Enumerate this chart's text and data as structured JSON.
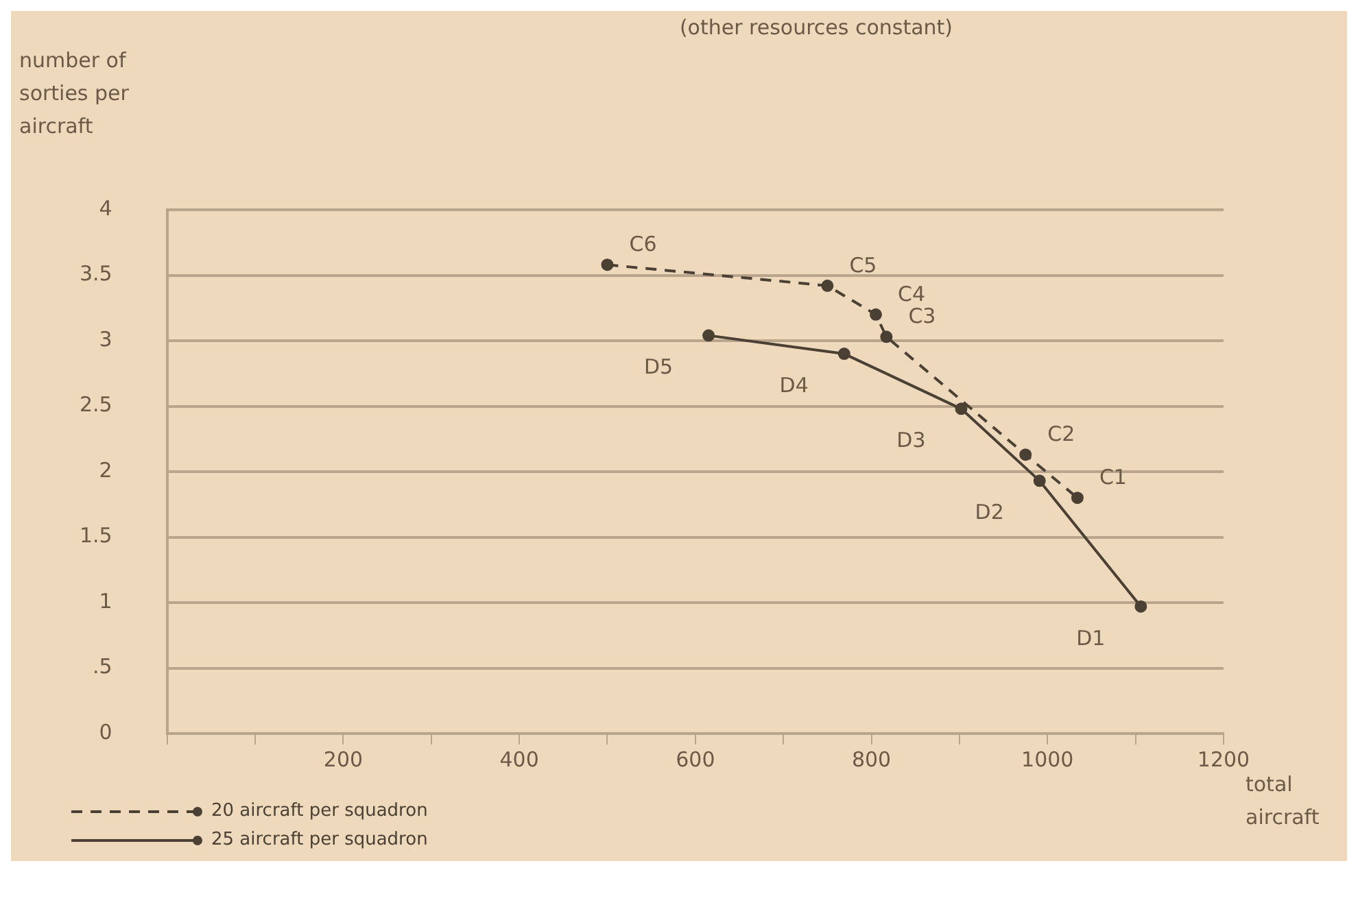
{
  "chart_data": {
    "type": "line",
    "title": "(other resources constant)",
    "ylabel": "number of sorties per aircraft",
    "xlabel": "total aircraft",
    "xlim": [
      0,
      1200
    ],
    "xticks": [
      {
        "value": 0,
        "label": null
      },
      {
        "value": 100,
        "label": null
      },
      200,
      {
        "value": 300,
        "label": null
      },
      400,
      {
        "value": 500,
        "label": null
      },
      600,
      {
        "value": 700,
        "label": null
      },
      800,
      {
        "value": 900,
        "label": null
      },
      1000,
      {
        "value": 1100,
        "label": null
      },
      1200
    ],
    "ylim": [
      0,
      4
    ],
    "yticks": [
      0,
      {
        "value": 0.5,
        "label": ".5"
      },
      1,
      1.5,
      2,
      2.5,
      3,
      3.5,
      4
    ],
    "grid": "y",
    "legend": "bottom left",
    "marker": "circle",
    "series": [
      {
        "name": "20 aircraft per squadron",
        "color": "#4a4034",
        "line_style": "dashed",
        "x": [
          500,
          750,
          805,
          817,
          975,
          1034
        ],
        "values": [
          3.58,
          3.42,
          3.2,
          3.03,
          2.13,
          1.8
        ]
      },
      {
        "name": "25 aircraft per squadron",
        "color": "#4a4034",
        "line_style": "solid",
        "x": [
          615,
          769,
          902,
          991,
          1106
        ],
        "values": [
          3.04,
          2.9,
          2.48,
          1.93,
          0.97
        ]
      }
    ],
    "annotations": [
      {
        "text": "C6",
        "x": 500,
        "y": 3.58
      },
      {
        "text": "C5",
        "x": 750,
        "y": 3.42
      },
      {
        "text": "C4",
        "x": 805,
        "y": 3.2
      },
      {
        "text": "C3",
        "x": 817,
        "y": 3.03
      },
      {
        "text": "C2",
        "x": 975,
        "y": 2.13
      },
      {
        "text": "C1",
        "x": 1034,
        "y": 1.8
      },
      {
        "text": "D5",
        "x": 615,
        "y": 3.04
      },
      {
        "text": "D4",
        "x": 769,
        "y": 2.9
      },
      {
        "text": "D3",
        "x": 902,
        "y": 2.48
      },
      {
        "text": "D2",
        "x": 991,
        "y": 1.93
      },
      {
        "text": "D1",
        "x": 1106,
        "y": 0.97
      }
    ]
  }
}
